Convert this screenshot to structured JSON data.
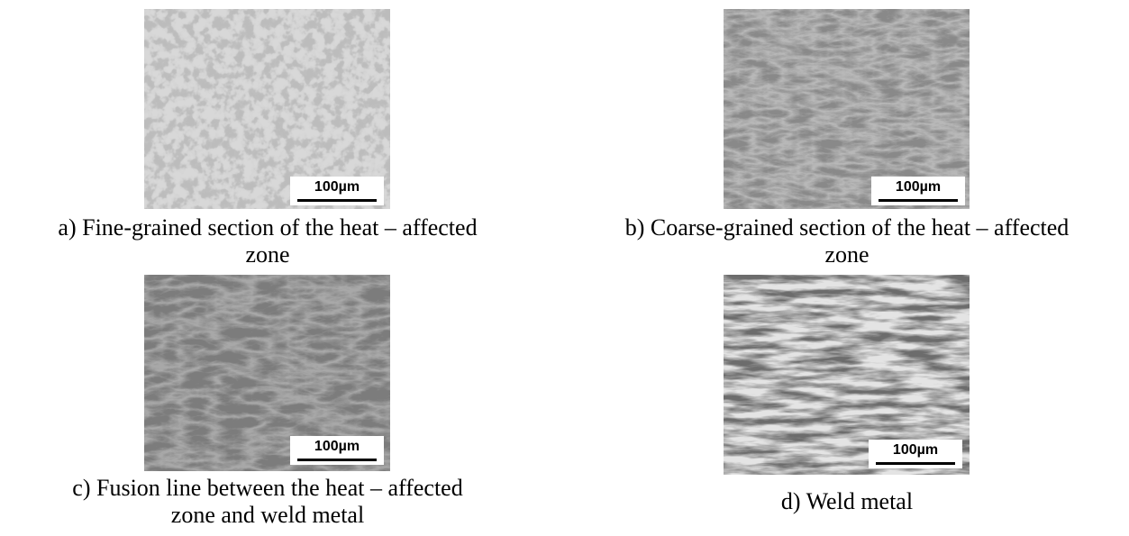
{
  "figure": {
    "panels": [
      {
        "caption_lines": [
          "a) Fine-grained section of the heat – affected",
          "zone"
        ],
        "scale_bar": "100µm"
      },
      {
        "caption_lines": [
          "b) Coarse-grained section of the heat – affected",
          "zone"
        ],
        "scale_bar": "100µm"
      },
      {
        "caption_lines": [
          "c) Fusion line between the heat – affected",
          "zone and weld metal"
        ],
        "scale_bar": "100µm"
      },
      {
        "caption_lines": [
          "d) Weld metal"
        ],
        "scale_bar": "100µm"
      }
    ]
  }
}
